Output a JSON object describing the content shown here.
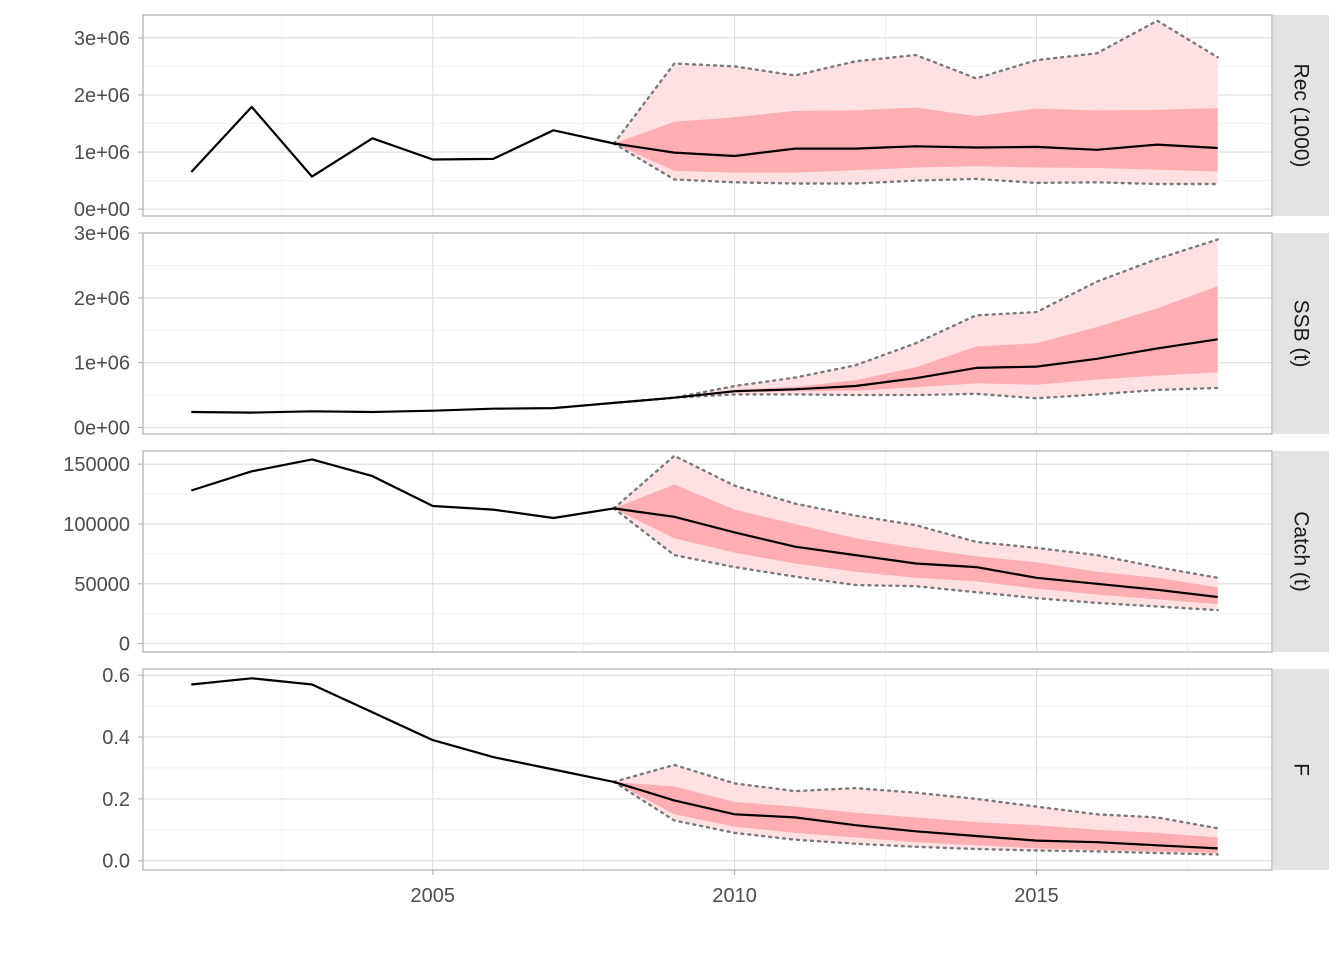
{
  "chart_data": {
    "type": "line",
    "layout": "faceted-vertical",
    "x_axis": {
      "range": [
        2000.2,
        2018.9
      ],
      "ticks": [
        2005,
        2010,
        2015
      ],
      "tick_labels": [
        "2005",
        "2010",
        "2015"
      ],
      "minor_ticks": [
        2002.5,
        2007.5,
        2012.5,
        2017.5
      ],
      "label": ""
    },
    "panels": [
      {
        "id": "rec",
        "strip": "Rec (1000)",
        "ylim": [
          -120000,
          3400000
        ],
        "y_ticks": [
          0,
          1000000,
          2000000,
          3000000
        ],
        "y_tick_labels": [
          "0e+00",
          "1e+06",
          "2e+06",
          "3e+06"
        ],
        "years": [
          2001,
          2002,
          2003,
          2004,
          2005,
          2006,
          2007,
          2008,
          2009,
          2010,
          2011,
          2012,
          2013,
          2014,
          2015,
          2016,
          2017,
          2018
        ],
        "median": [
          650000,
          1790000,
          570000,
          1240000,
          870000,
          880000,
          1380000,
          1150000,
          990000,
          930000,
          1060000,
          1060000,
          1100000,
          1080000,
          1090000,
          1040000,
          1130000,
          1070000
        ],
        "proj_years": [
          2008,
          2009,
          2010,
          2011,
          2012,
          2013,
          2014,
          2015,
          2016,
          2017,
          2018
        ],
        "q_low": [
          1150000,
          520000,
          470000,
          450000,
          450000,
          500000,
          530000,
          460000,
          470000,
          440000,
          440000
        ],
        "q_high": [
          1150000,
          2550000,
          2500000,
          2340000,
          2590000,
          2700000,
          2290000,
          2610000,
          2730000,
          3300000,
          2660000
        ],
        "inner_low": [
          1150000,
          670000,
          640000,
          640000,
          680000,
          730000,
          750000,
          730000,
          720000,
          690000,
          660000
        ],
        "inner_high": [
          1150000,
          1530000,
          1610000,
          1720000,
          1730000,
          1780000,
          1630000,
          1760000,
          1730000,
          1740000,
          1770000
        ]
      },
      {
        "id": "ssb",
        "strip": "SSB (t)",
        "ylim": [
          -100000,
          3000000
        ],
        "y_ticks": [
          0,
          1000000,
          2000000,
          3000000
        ],
        "y_tick_labels": [
          "0e+00",
          "1e+06",
          "2e+06",
          "3e+06"
        ],
        "years": [
          2001,
          2002,
          2003,
          2004,
          2005,
          2006,
          2007,
          2008,
          2009,
          2010,
          2011,
          2012,
          2013,
          2014,
          2015,
          2016,
          2017,
          2018
        ],
        "median": [
          240000,
          230000,
          250000,
          240000,
          260000,
          290000,
          300000,
          380000,
          460000,
          560000,
          590000,
          640000,
          760000,
          920000,
          940000,
          1060000,
          1220000,
          1360000
        ],
        "proj_years": [
          2008,
          2009,
          2010,
          2011,
          2012,
          2013,
          2014,
          2015,
          2016,
          2017,
          2018
        ],
        "q_low": [
          380000,
          460000,
          510000,
          510000,
          500000,
          500000,
          520000,
          450000,
          510000,
          580000,
          610000
        ],
        "q_high": [
          380000,
          460000,
          640000,
          770000,
          960000,
          1300000,
          1730000,
          1780000,
          2250000,
          2600000,
          2900000
        ],
        "inner_low": [
          380000,
          460000,
          540000,
          560000,
          570000,
          620000,
          680000,
          660000,
          740000,
          800000,
          850000
        ],
        "inner_high": [
          380000,
          460000,
          580000,
          630000,
          730000,
          930000,
          1250000,
          1300000,
          1550000,
          1840000,
          2180000
        ]
      },
      {
        "id": "catch",
        "strip": "Catch (t)",
        "ylim": [
          -7000,
          161000
        ],
        "y_ticks": [
          0,
          50000,
          100000,
          150000
        ],
        "y_tick_labels": [
          "0",
          "50000",
          "100000",
          "150000"
        ],
        "years": [
          2001,
          2002,
          2003,
          2004,
          2005,
          2006,
          2007,
          2008,
          2009,
          2010,
          2011,
          2012,
          2013,
          2014,
          2015,
          2016,
          2017,
          2018
        ],
        "median": [
          128000,
          144000,
          154000,
          140000,
          115000,
          112000,
          105000,
          113000,
          106000,
          93000,
          81000,
          74000,
          67000,
          64000,
          55000,
          50000,
          45000,
          39000
        ],
        "proj_years": [
          2008,
          2009,
          2010,
          2011,
          2012,
          2013,
          2014,
          2015,
          2016,
          2017,
          2018
        ],
        "q_low": [
          113000,
          74000,
          64000,
          56000,
          49000,
          48000,
          43000,
          38000,
          34000,
          31000,
          28000
        ],
        "q_high": [
          113000,
          157000,
          132000,
          117000,
          107000,
          99000,
          85000,
          80000,
          74000,
          64000,
          55000
        ],
        "inner_low": [
          113000,
          88000,
          76000,
          67000,
          60000,
          55000,
          52000,
          46000,
          41000,
          37000,
          33000
        ],
        "inner_high": [
          113000,
          133000,
          112000,
          100000,
          88000,
          80000,
          73000,
          68000,
          60000,
          55000,
          47000
        ]
      },
      {
        "id": "f",
        "strip": "F",
        "ylim": [
          -0.03,
          0.62
        ],
        "y_ticks": [
          0,
          0.2,
          0.4,
          0.6
        ],
        "y_tick_labels": [
          "0.0",
          "0.2",
          "0.4",
          "0.6"
        ],
        "years": [
          2001,
          2002,
          2003,
          2004,
          2005,
          2006,
          2007,
          2008,
          2009,
          2010,
          2011,
          2012,
          2013,
          2014,
          2015,
          2016,
          2017,
          2018
        ],
        "median": [
          0.57,
          0.59,
          0.57,
          0.48,
          0.39,
          0.335,
          0.295,
          0.255,
          0.195,
          0.15,
          0.14,
          0.115,
          0.095,
          0.08,
          0.065,
          0.06,
          0.05,
          0.04
        ],
        "proj_years": [
          2008,
          2009,
          2010,
          2011,
          2012,
          2013,
          2014,
          2015,
          2016,
          2017,
          2018
        ],
        "q_low": [
          0.255,
          0.13,
          0.09,
          0.068,
          0.055,
          0.045,
          0.038,
          0.033,
          0.03,
          0.025,
          0.02
        ],
        "q_high": [
          0.255,
          0.31,
          0.25,
          0.225,
          0.235,
          0.22,
          0.2,
          0.175,
          0.15,
          0.14,
          0.105
        ],
        "inner_low": [
          0.255,
          0.15,
          0.11,
          0.09,
          0.075,
          0.06,
          0.05,
          0.04,
          0.035,
          0.03,
          0.025
        ],
        "inner_high": [
          0.255,
          0.24,
          0.19,
          0.175,
          0.155,
          0.14,
          0.125,
          0.115,
          0.1,
          0.09,
          0.075
        ]
      }
    ],
    "colors": {
      "outer_band": "#ffe1e4",
      "inner_band": "#ffaeb1",
      "median": "#000000",
      "quantile_line": "#7a7a7a"
    }
  }
}
